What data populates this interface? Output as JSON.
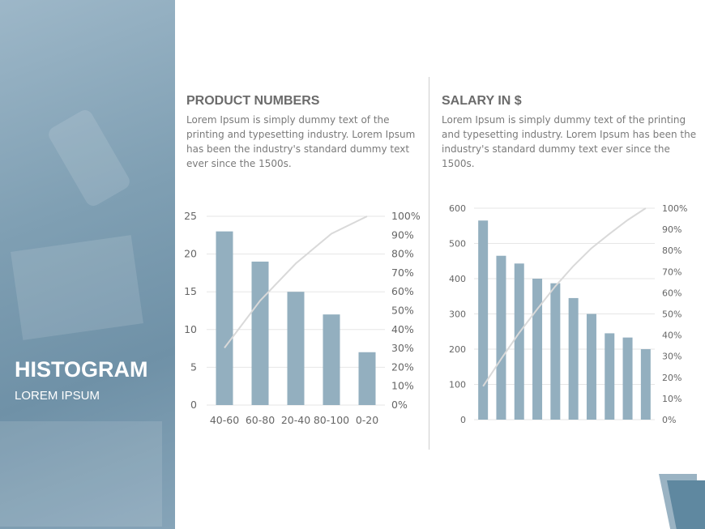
{
  "hero": {
    "title": "HISTOGRAM",
    "subtitle": "LOREM IPSUM"
  },
  "sections": [
    {
      "title": "PRODUCT NUMBERS",
      "description": "Lorem Ipsum is simply dummy text of the printing and typesetting industry. Lorem Ipsum has been the industry's standard dummy text ever since the 1500s."
    },
    {
      "title": "SALARY IN $",
      "description": "Lorem Ipsum is simply dummy text of the printing and typesetting industry. Lorem Ipsum has been the industry's standard dummy text ever since the 1500s."
    }
  ],
  "colors": {
    "bar": "#93afbf",
    "line": "#d9d9d9",
    "accent": "#5f88a0"
  },
  "chart_data": [
    {
      "type": "bar",
      "categories": [
        "40-60",
        "60-80",
        "20-40",
        "80-100",
        "0-20"
      ],
      "values": [
        23,
        19,
        15,
        12,
        7
      ],
      "cumulative_percent": [
        30.3,
        55.3,
        75,
        90.8,
        100
      ],
      "ylim": [
        0,
        25
      ],
      "yticks": [
        "0",
        "5",
        "10",
        "15",
        "20",
        "25"
      ],
      "y2lim": [
        0,
        100
      ],
      "y2ticks": [
        "0%",
        "10%",
        "20%",
        "30%",
        "40%",
        "50%",
        "60%",
        "70%",
        "80%",
        "90%",
        "100%"
      ],
      "grid": true
    },
    {
      "type": "bar",
      "categories": [
        "",
        "",
        "",
        "",
        "",
        "",
        "",
        "",
        "",
        ""
      ],
      "values": [
        565,
        465,
        443,
        400,
        387,
        345,
        300,
        245,
        233,
        200
      ],
      "cumulative_percent": [
        15.8,
        28.7,
        41.1,
        52.3,
        63.1,
        72.7,
        81.1,
        87.9,
        94.4,
        100
      ],
      "ylim": [
        0,
        600
      ],
      "yticks": [
        "0",
        "100",
        "200",
        "300",
        "400",
        "500",
        "600"
      ],
      "y2lim": [
        0,
        100
      ],
      "y2ticks": [
        "0%",
        "10%",
        "20%",
        "30%",
        "40%",
        "50%",
        "60%",
        "70%",
        "80%",
        "90%",
        "100%"
      ],
      "grid": true
    }
  ]
}
